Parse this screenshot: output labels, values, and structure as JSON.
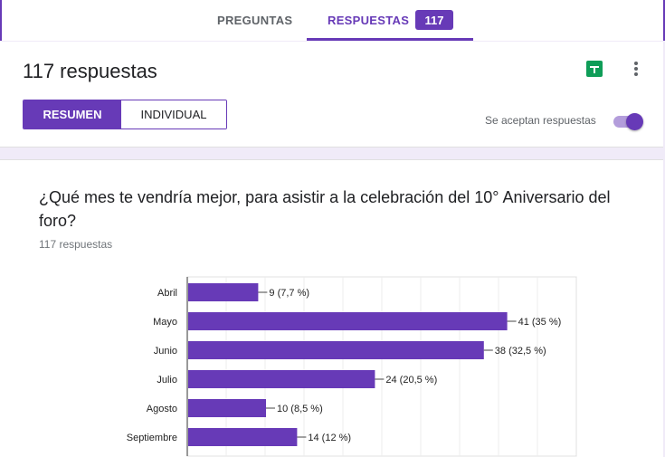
{
  "tabs": {
    "preguntas": "PREGUNTAS",
    "respuestas": "RESPUESTAS",
    "count": "117"
  },
  "summary": {
    "title": "117 respuestas",
    "buttons": {
      "resumen": "RESUMEN",
      "individual": "INDIVIDUAL"
    },
    "accepting_label": "Se aceptan respuestas",
    "accepting_on": true
  },
  "question": {
    "title": "¿Qué mes te vendría mejor, para asistir a la celebración del 10° Aniversario del foro?",
    "responses": "117 respuestas"
  },
  "colors": {
    "accent": "#673ab7",
    "bar": "#673ab7",
    "sheets": "#0f9d58"
  },
  "chart_data": {
    "type": "bar",
    "orientation": "horizontal",
    "categories": [
      "Abril",
      "Mayo",
      "Junio",
      "Julio",
      "Agosto",
      "Septiembre"
    ],
    "values": [
      9,
      41,
      38,
      24,
      10,
      14
    ],
    "data_labels": [
      "9 (7,7 %)",
      "41 (35 %)",
      "38 (32,5 %)",
      "24 (20,5 %)",
      "10 (8,5 %)",
      "14 (12 %)"
    ],
    "xlim": [
      0,
      50
    ],
    "grid": true
  }
}
